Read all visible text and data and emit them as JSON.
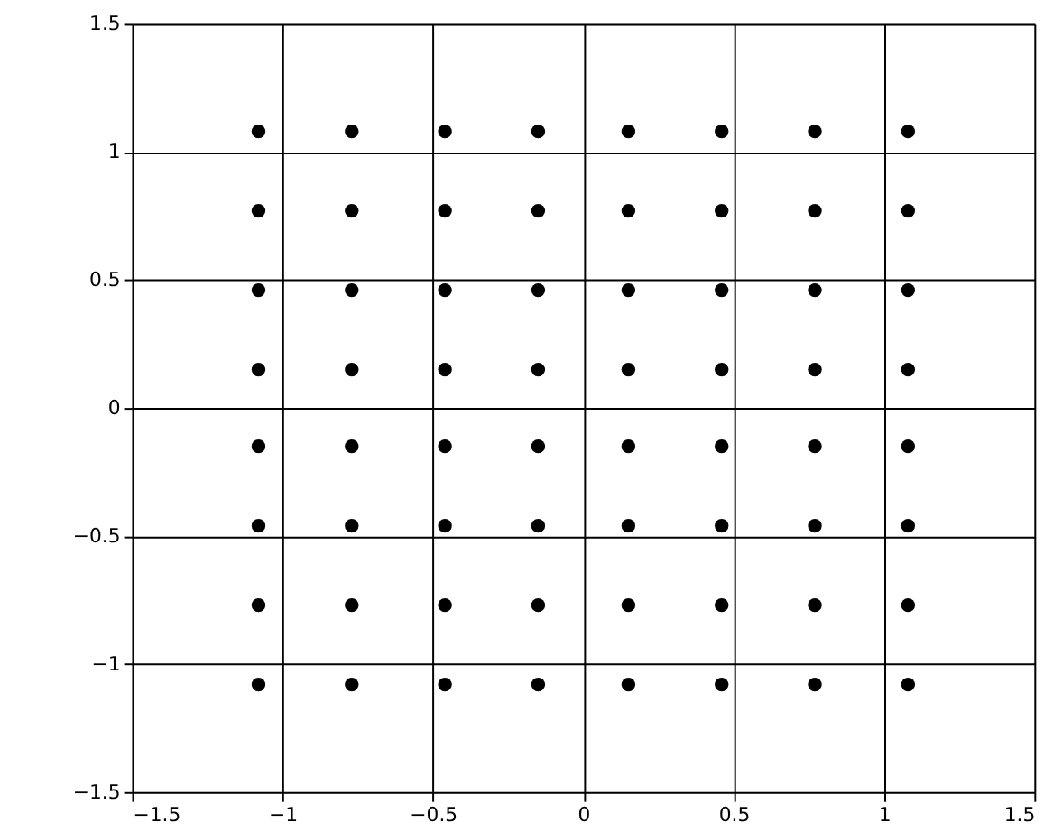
{
  "chart_data": {
    "type": "scatter",
    "x": [
      -1.08,
      -0.77,
      -0.46,
      -0.15,
      0.15,
      0.46,
      0.77,
      1.08,
      -1.08,
      -0.77,
      -0.46,
      -0.15,
      0.15,
      0.46,
      0.77,
      1.08,
      -1.08,
      -0.77,
      -0.46,
      -0.15,
      0.15,
      0.46,
      0.77,
      1.08,
      -1.08,
      -0.77,
      -0.46,
      -0.15,
      0.15,
      0.46,
      0.77,
      1.08,
      -1.08,
      -0.77,
      -0.46,
      -0.15,
      0.15,
      0.46,
      0.77,
      1.08,
      -1.08,
      -0.77,
      -0.46,
      -0.15,
      0.15,
      0.46,
      0.77,
      1.08,
      -1.08,
      -0.77,
      -0.46,
      -0.15,
      0.15,
      0.46,
      0.77,
      1.08,
      -1.08,
      -0.77,
      -0.46,
      -0.15,
      0.15,
      0.46,
      0.77,
      1.08
    ],
    "series": [
      {
        "color": "#000000",
        "values": [
          1.08,
          1.08,
          1.08,
          1.08,
          1.08,
          1.08,
          1.08,
          1.08,
          0.77,
          0.77,
          0.77,
          0.77,
          0.77,
          0.77,
          0.77,
          0.77,
          0.46,
          0.46,
          0.46,
          0.46,
          0.46,
          0.46,
          0.46,
          0.46,
          0.15,
          0.15,
          0.15,
          0.15,
          0.15,
          0.15,
          0.15,
          0.15,
          -0.15,
          -0.15,
          -0.15,
          -0.15,
          -0.15,
          -0.15,
          -0.15,
          -0.15,
          -0.46,
          -0.46,
          -0.46,
          -0.46,
          -0.46,
          -0.46,
          -0.46,
          -0.46,
          -0.77,
          -0.77,
          -0.77,
          -0.77,
          -0.77,
          -0.77,
          -0.77,
          -0.77,
          -1.08,
          -1.08,
          -1.08,
          -1.08,
          -1.08,
          -1.08,
          -1.08,
          -1.08
        ]
      }
    ],
    "xlim": [
      -1.5,
      1.5
    ],
    "ylim": [
      -1.5,
      1.5
    ],
    "xticks": [
      -1.5,
      -1,
      -0.5,
      0,
      0.5,
      1,
      1.5
    ],
    "yticks": [
      -1.5,
      -1,
      -0.5,
      0,
      0.5,
      1,
      1.5
    ],
    "grid": true,
    "marker": "circle"
  }
}
